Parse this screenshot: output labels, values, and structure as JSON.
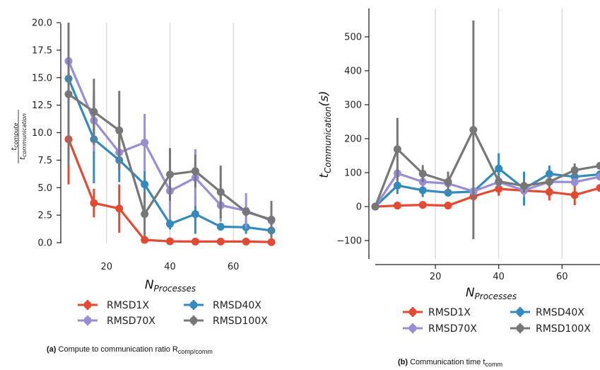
{
  "chart_data": [
    {
      "type": "line",
      "xlabel": "N_Processes",
      "ylabel": "t_compute / t_communication",
      "xticks": [
        "20",
        "40",
        "60"
      ],
      "yticks": [
        "0.0",
        "2.5",
        "5.0",
        "7.5",
        "10.0",
        "12.5",
        "15.0",
        "17.5",
        "20.0"
      ],
      "xlim": [
        8,
        72
      ],
      "ylim": [
        0,
        20
      ],
      "grid": true,
      "legend": "bottom",
      "x": [
        8,
        16,
        24,
        32,
        40,
        48,
        56,
        64,
        72
      ],
      "series": [
        {
          "name": "RMSD1X",
          "color": "#e24a33",
          "values": [
            9.4,
            3.6,
            3.1,
            0.25,
            0.12,
            0.1,
            0.1,
            0.1,
            0.05
          ],
          "err": [
            4.1,
            1.3,
            2.2,
            0.1,
            0.05,
            0.05,
            0.05,
            0.05,
            0.03
          ]
        },
        {
          "name": "RMSD40X",
          "color": "#348abd",
          "values": [
            14.9,
            9.4,
            7.5,
            5.3,
            1.7,
            2.6,
            1.45,
            1.4,
            1.1
          ],
          "err": [
            1.5,
            4.0,
            2.0,
            1.2,
            0.5,
            1.8,
            0.3,
            0.6,
            0.5
          ]
        },
        {
          "name": "RMSD70X",
          "color": "#988ed5",
          "values": [
            16.5,
            11.1,
            8.2,
            9.1,
            4.7,
            5.9,
            3.4,
            2.9,
            2.0
          ],
          "err": [
            0.8,
            2.8,
            1.5,
            2.6,
            2.6,
            2.6,
            1.5,
            1.6,
            0.8
          ]
        },
        {
          "name": "RMSD100X",
          "color": "#777777",
          "values": [
            13.5,
            11.9,
            10.2,
            2.6,
            6.2,
            6.5,
            4.6,
            2.8,
            2.1
          ],
          "err": [
            6.5,
            3.0,
            3.6,
            2.0,
            2.4,
            1.5,
            2.4,
            0.4,
            1.7
          ]
        }
      ]
    },
    {
      "type": "line",
      "xlabel": "N_Processes",
      "ylabel": "t_Communication(s)",
      "xticks": [
        "20",
        "40",
        "60"
      ],
      "yticks": [
        "−100",
        "0",
        "100",
        "200",
        "300",
        "400",
        "500"
      ],
      "xlim": [
        1,
        72
      ],
      "ylim": [
        -140,
        580
      ],
      "grid": true,
      "legend": "bottom",
      "x": [
        1,
        8,
        16,
        24,
        32,
        40,
        48,
        56,
        64,
        72
      ],
      "series": [
        {
          "name": "RMSD1X",
          "color": "#e24a33",
          "values": [
            0,
            3,
            5,
            3,
            30,
            52,
            47,
            43,
            34,
            55
          ],
          "err": [
            2,
            3,
            3,
            3,
            10,
            20,
            15,
            25,
            30,
            10
          ]
        },
        {
          "name": "RMSD40X",
          "color": "#348abd",
          "values": [
            0,
            62,
            48,
            41,
            44,
            112,
            53,
            96,
            88,
            95
          ],
          "err": [
            2,
            25,
            20,
            12,
            10,
            45,
            50,
            25,
            15,
            10
          ]
        },
        {
          "name": "RMSD70X",
          "color": "#988ed5",
          "values": [
            0,
            98,
            73,
            68,
            45,
            72,
            48,
            73,
            72,
            88
          ],
          "err": [
            2,
            20,
            15,
            12,
            10,
            15,
            20,
            15,
            10,
            10
          ]
        },
        {
          "name": "RMSD100X",
          "color": "#777777",
          "values": [
            0,
            169,
            97,
            73,
            226,
            74,
            61,
            73,
            107,
            120
          ],
          "err": [
            2,
            92,
            25,
            30,
            322,
            15,
            20,
            15,
            20,
            10
          ]
        }
      ]
    }
  ],
  "captions": {
    "left": {
      "label": "(a)",
      "text": "Compute to communication ratio R",
      "sub": "comp/comm"
    },
    "right": {
      "label": "(b)",
      "text": "Communication time t",
      "sub": "comm"
    }
  },
  "axis_text": {
    "left_ylabel_num": "t",
    "left_ylabel_num_sub": "compute",
    "left_ylabel_den": "t",
    "left_ylabel_den_sub": "communication",
    "xlabel_main": "N",
    "xlabel_sub": "Processes",
    "right_ylabel_main": "t",
    "right_ylabel_sub": "Communication",
    "right_ylabel_tail": "(s)"
  }
}
